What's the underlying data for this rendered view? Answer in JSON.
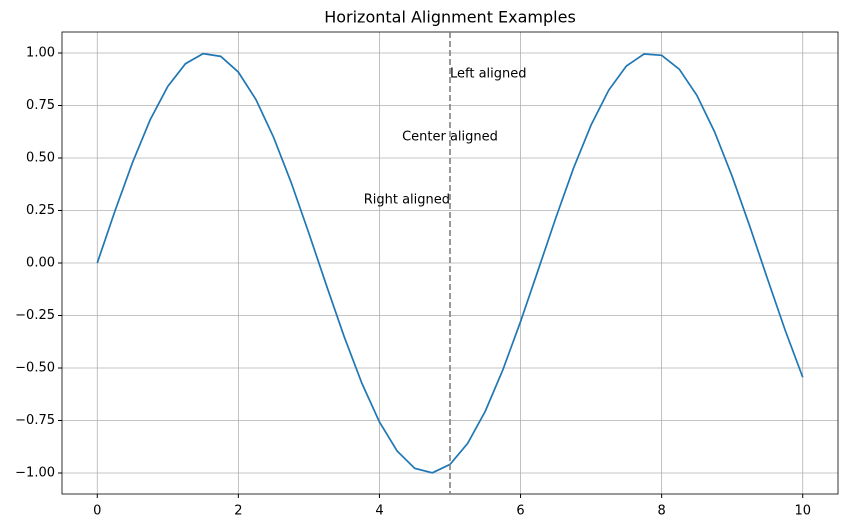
{
  "chart_data": {
    "type": "line",
    "title": "Horizontal Alignment Examples",
    "x": [
      0,
      0.25,
      0.5,
      0.75,
      1,
      1.25,
      1.5,
      1.75,
      2,
      2.25,
      2.5,
      2.75,
      3,
      3.25,
      3.5,
      3.75,
      4,
      4.25,
      4.5,
      4.75,
      5,
      5.25,
      5.5,
      5.75,
      6,
      6.25,
      6.5,
      6.75,
      7,
      7.25,
      7.5,
      7.75,
      8,
      8.25,
      8.5,
      8.75,
      9,
      9.25,
      9.5,
      9.75,
      10
    ],
    "values": [
      0,
      0.247,
      0.479,
      0.682,
      0.841,
      0.949,
      0.997,
      0.984,
      0.909,
      0.778,
      0.598,
      0.382,
      0.141,
      -0.108,
      -0.351,
      -0.572,
      -0.757,
      -0.895,
      -0.978,
      -0.999,
      -0.959,
      -0.859,
      -0.706,
      -0.508,
      -0.279,
      -0.033,
      0.215,
      0.451,
      0.657,
      0.823,
      0.938,
      0.995,
      0.989,
      0.923,
      0.798,
      0.625,
      0.412,
      0.174,
      -0.075,
      -0.319,
      -0.544
    ],
    "color": "#1f77b4",
    "xlim": [
      -0.5,
      10.5
    ],
    "ylim": [
      -1.1,
      1.1
    ],
    "xticks": [
      0,
      2,
      4,
      6,
      8,
      10
    ],
    "yticks": [
      {
        "value": -1,
        "label": "−1.00"
      },
      {
        "value": -0.75,
        "label": "−0.75"
      },
      {
        "value": -0.5,
        "label": "−0.50"
      },
      {
        "value": -0.25,
        "label": "−0.25"
      },
      {
        "value": 0,
        "label": "0.00"
      },
      {
        "value": 0.25,
        "label": "0.25"
      },
      {
        "value": 0.5,
        "label": "0.50"
      },
      {
        "value": 0.75,
        "label": "0.75"
      },
      {
        "value": 1,
        "label": "1.00"
      }
    ],
    "grid": true,
    "vline": {
      "x": 5,
      "color": "#808080",
      "style": "dashed"
    },
    "annotations": [
      {
        "text": "Left aligned",
        "x": 5,
        "y": 0.9,
        "ha": "left"
      },
      {
        "text": "Center aligned",
        "x": 5,
        "y": 0.6,
        "ha": "center"
      },
      {
        "text": "Right aligned",
        "x": 5,
        "y": 0.3,
        "ha": "right"
      }
    ]
  }
}
